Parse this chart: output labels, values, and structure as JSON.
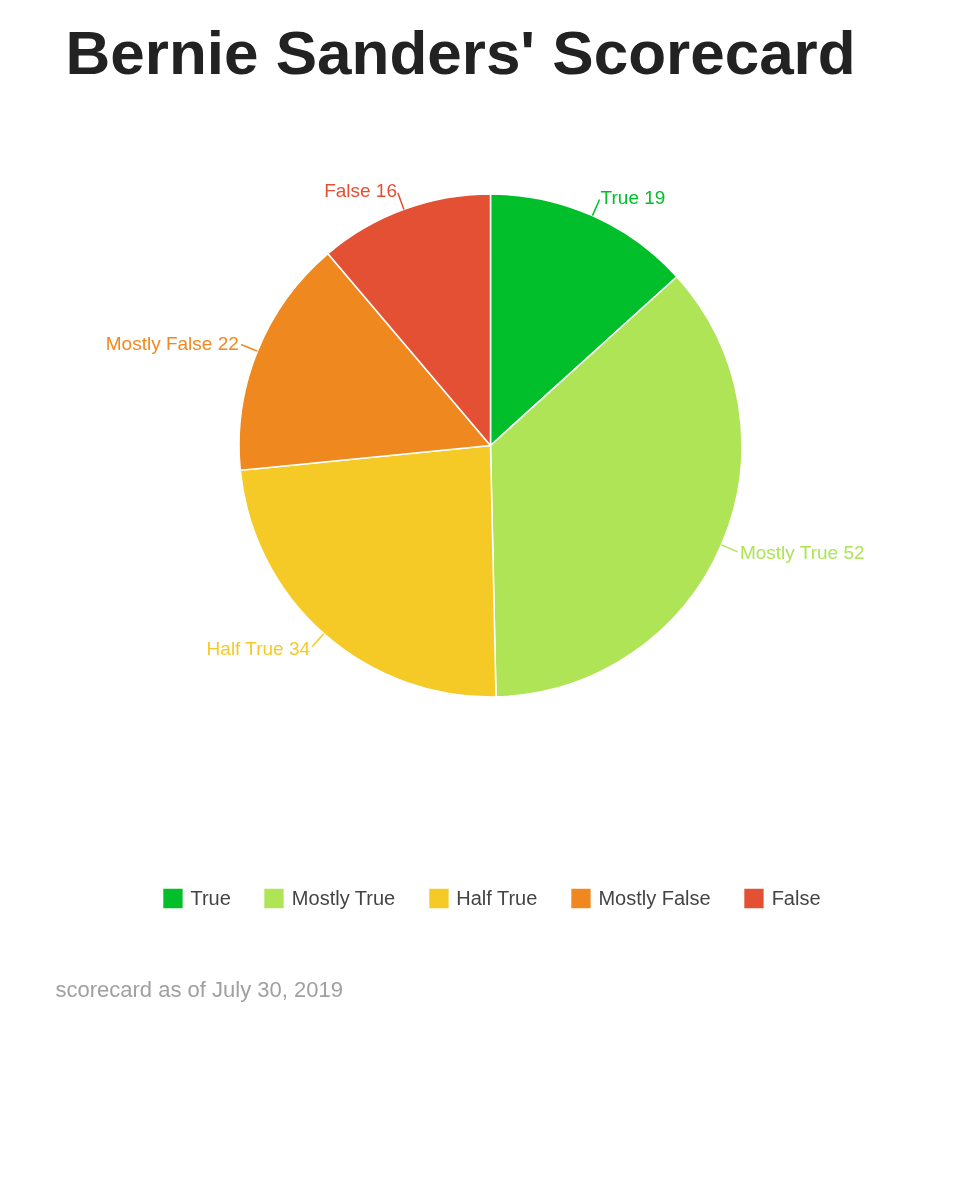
{
  "chart_data": {
    "type": "pie",
    "title": "Bernie Sanders' Scorecard",
    "categories": [
      "True",
      "Mostly True",
      "Half True",
      "Mostly False",
      "False"
    ],
    "values": [
      19,
      52,
      34,
      22,
      16
    ],
    "colors": [
      "#00bf2a",
      "#aee455",
      "#f5c926",
      "#f08820",
      "#e35033"
    ],
    "value_labels": [
      "True 19",
      "Mostly True 52",
      "Half True 34",
      "Mostly False 22",
      "False 16"
    ],
    "legend": "bottom",
    "annotations": [
      "scorecard as of July 30, 2019"
    ]
  }
}
